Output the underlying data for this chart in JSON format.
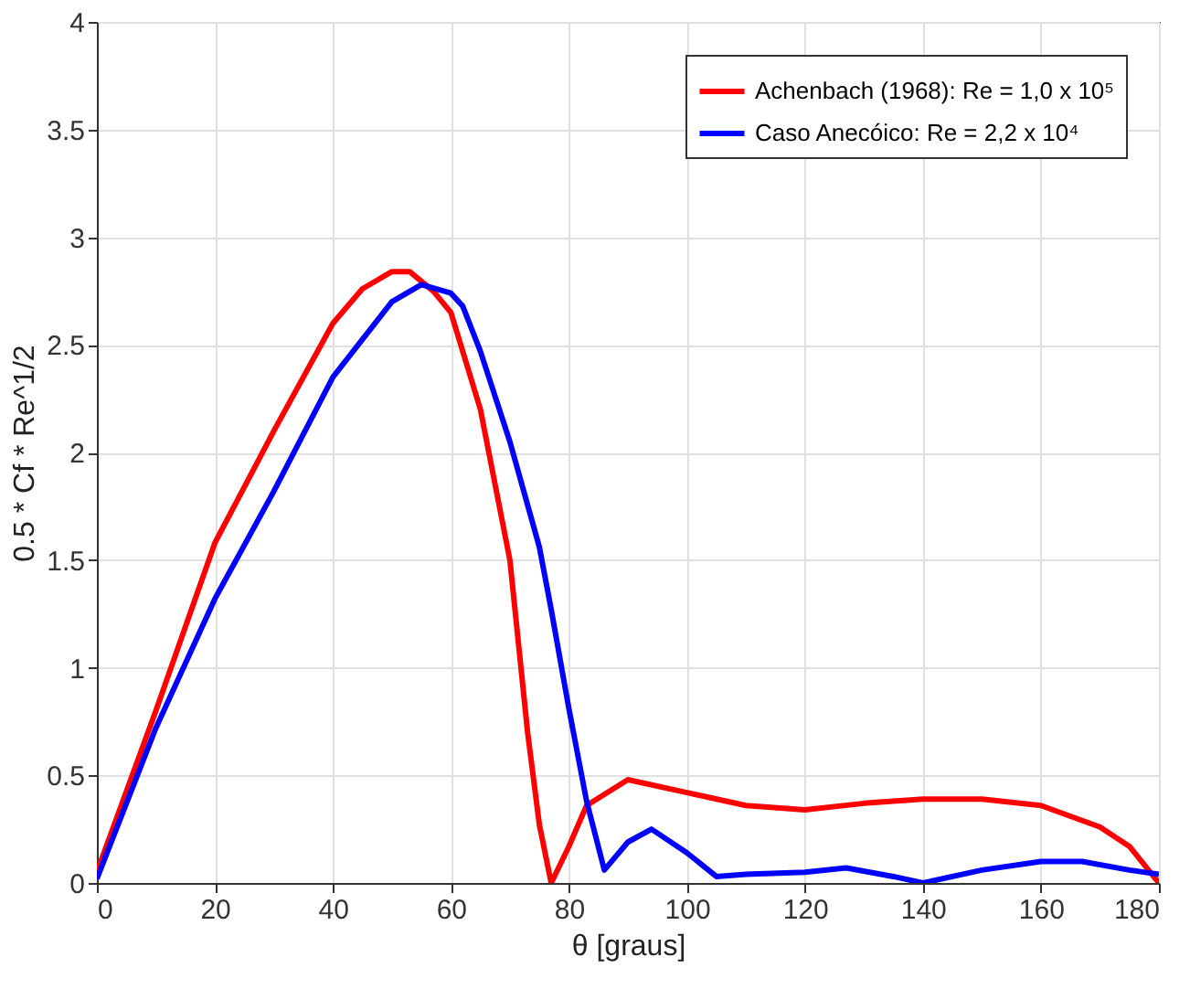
{
  "chart_data": {
    "type": "line",
    "xlabel": "θ [graus]",
    "ylabel": "0.5 * Cf * Re^1/2",
    "xlim": [
      0,
      180
    ],
    "xticks": [
      0,
      20,
      40,
      60,
      80,
      100,
      120,
      140,
      160,
      180
    ],
    "ylim": [
      0,
      4
    ],
    "yticks": [
      0,
      0.5,
      1,
      1.5,
      2,
      2.5,
      3,
      3.5,
      4
    ],
    "grid": true,
    "legend": "top right",
    "marker": "none",
    "line_style": "solid",
    "series": [
      {
        "name": "Achenbach (1968): Re = 1,0 x 10⁵",
        "color": "#ff0000",
        "x": [
          0,
          10,
          20,
          30,
          40,
          45,
          50,
          53,
          57,
          60,
          65,
          70,
          73,
          75,
          77,
          80,
          83,
          90,
          100,
          110,
          120,
          130,
          140,
          150,
          160,
          170,
          175,
          180
        ],
        "values": [
          0.05,
          0.8,
          1.58,
          2.1,
          2.6,
          2.76,
          2.84,
          2.84,
          2.75,
          2.65,
          2.2,
          1.5,
          0.7,
          0.27,
          0,
          0.17,
          0.36,
          0.48,
          0.42,
          0.36,
          0.34,
          0.37,
          0.39,
          0.39,
          0.36,
          0.26,
          0.17,
          0
        ]
      },
      {
        "name": "Caso Anecóico: Re = 2,2 x 10⁴",
        "color": "#0000ff",
        "x": [
          0,
          10,
          20,
          30,
          40,
          50,
          55,
          60,
          62,
          65,
          70,
          75,
          77,
          80,
          83,
          86,
          90,
          94,
          100,
          105,
          110,
          120,
          127,
          135,
          140,
          150,
          160,
          167,
          175,
          180
        ],
        "values": [
          0.02,
          0.72,
          1.32,
          1.82,
          2.35,
          2.7,
          2.78,
          2.74,
          2.68,
          2.47,
          2.05,
          1.56,
          1.27,
          0.81,
          0.38,
          0.06,
          0.19,
          0.25,
          0.14,
          0.03,
          0.04,
          0.05,
          0.07,
          0.03,
          0,
          0.06,
          0.1,
          0.1,
          0.06,
          0.04
        ]
      }
    ]
  }
}
